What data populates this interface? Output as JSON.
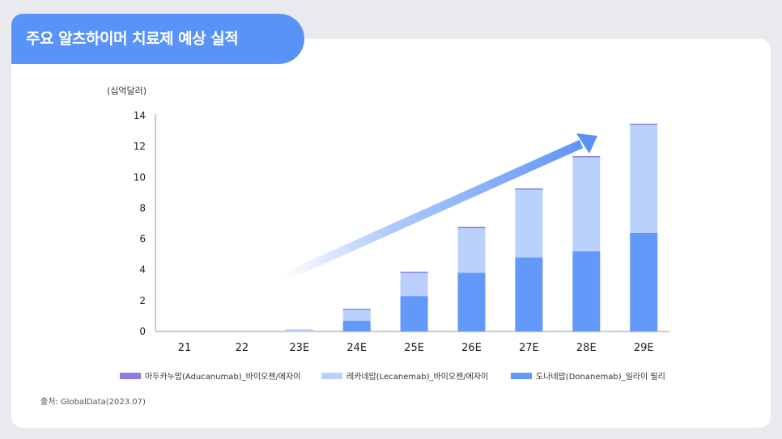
{
  "title": "주요 알츠하이머 치료제 예상 실적",
  "source": "출처: GlobalData(2023.07)",
  "colors": {
    "background": "#e9eaee",
    "card": "#ffffff",
    "accent": "#5a93f7",
    "aducanumab": "#8a7fe0",
    "lecanemab": "#b9d1fc",
    "donanemab": "#6399fb"
  },
  "chart_data": {
    "type": "bar",
    "stacked": true,
    "unit_label": "(십억달러)",
    "categories": [
      "21",
      "22",
      "23E",
      "24E",
      "25E",
      "26E",
      "27E",
      "28E",
      "29E"
    ],
    "ylim": [
      0,
      14
    ],
    "yticks": [
      0,
      2,
      4,
      6,
      8,
      10,
      12,
      14
    ],
    "grid": false,
    "legend_position": "bottom",
    "series": [
      {
        "name": "도나네맙(Donanemab)_일라이 릴리",
        "color": "#6399fb",
        "values": [
          0,
          0,
          0,
          0.7,
          2.3,
          3.8,
          4.8,
          5.2,
          6.4
        ]
      },
      {
        "name": "레카네맙(Lecanemab)_바이오젠/에자이",
        "color": "#b9d1fc",
        "values": [
          0,
          0,
          0.15,
          0.7,
          1.5,
          2.9,
          4.4,
          6.1,
          7.0
        ]
      },
      {
        "name": "아두카누맙(Aducanumab)_바이오젠/에자이",
        "color": "#8a7fe0",
        "values": [
          0,
          0,
          0,
          0.03,
          0.05,
          0.05,
          0.05,
          0.05,
          0.05
        ]
      }
    ],
    "legend_order": [
      2,
      1,
      0
    ],
    "annotation": "upward trend arrow"
  }
}
